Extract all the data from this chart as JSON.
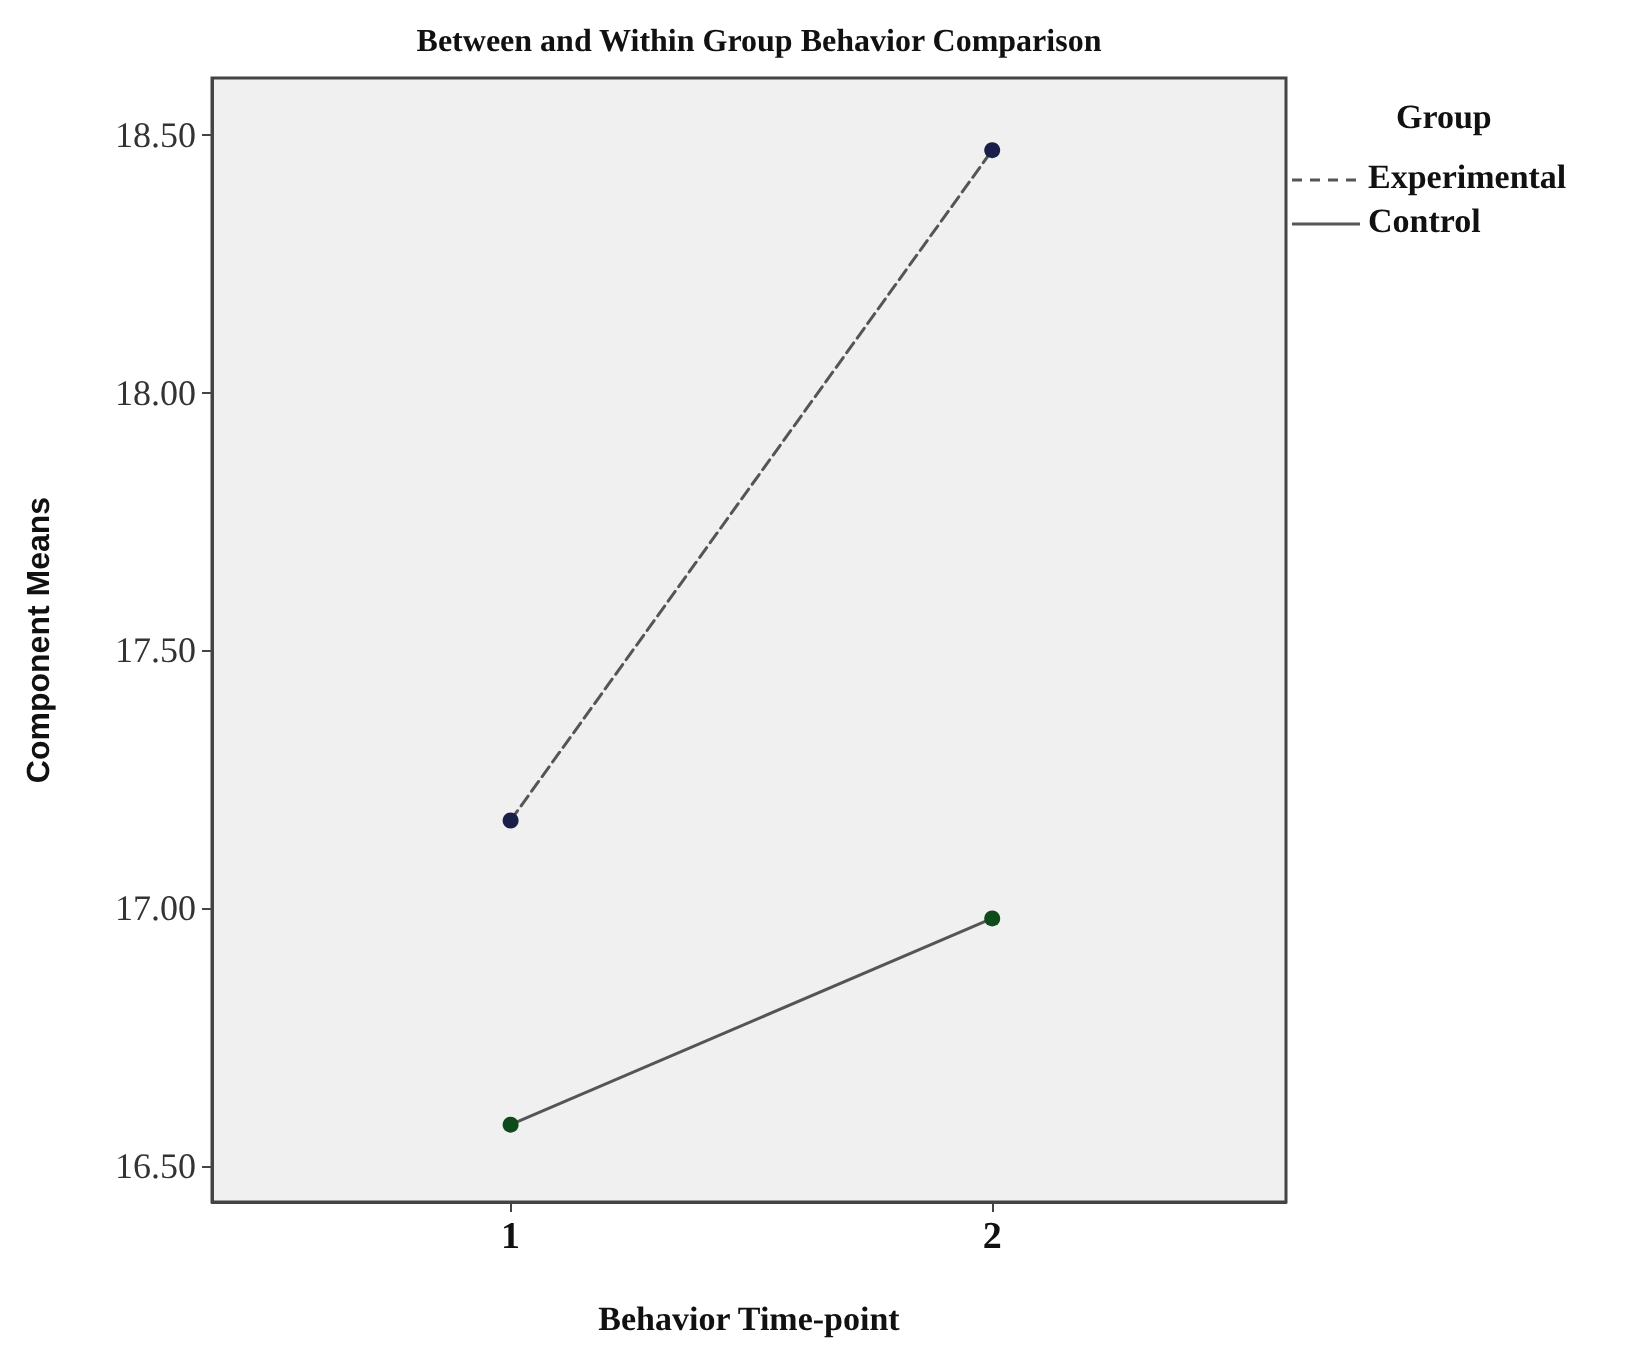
{
  "chart_data": {
    "type": "line",
    "title": "Between and Within Group Behavior Comparison",
    "xlabel": "Behavior Time-point",
    "ylabel": "Component Means",
    "legend_title": "Group",
    "x": [
      1,
      2
    ],
    "xlim": [
      0.38,
      2.61
    ],
    "xticks": [
      1,
      2
    ],
    "ylim": [
      16.43,
      18.61
    ],
    "yticks": [
      {
        "value": 16.5,
        "label": "16.50"
      },
      {
        "value": 17,
        "label": "17.00"
      },
      {
        "value": 17.5,
        "label": "17.50"
      },
      {
        "value": 18,
        "label": "18.00"
      },
      {
        "value": 18.5,
        "label": "18.50"
      }
    ],
    "series": [
      {
        "name": "Experimental",
        "color": "#1a1f4a",
        "line_style": "dashed",
        "values": [
          17.17,
          18.47
        ]
      },
      {
        "name": "Control",
        "color": "#0f4a1a",
        "line_style": "solid",
        "values": [
          16.58,
          16.98
        ]
      }
    ],
    "marker": "circle",
    "grid": false,
    "legend": "top right"
  }
}
